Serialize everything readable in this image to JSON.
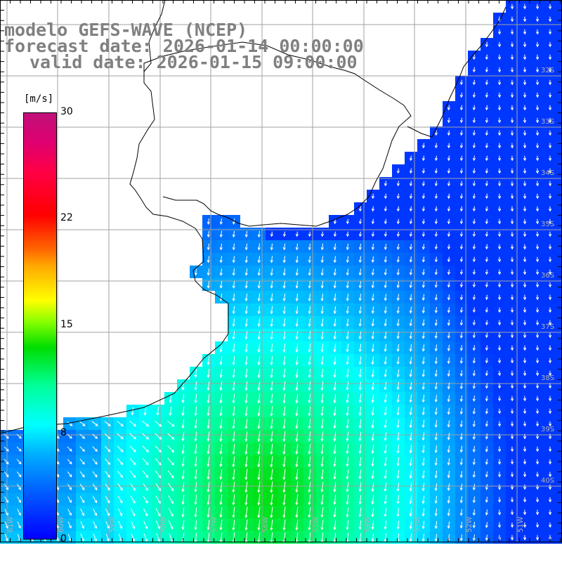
{
  "title": {
    "line1": "modelo GEFS-WAVE (NCEP)",
    "line2": "forecast date: 2026-01-14 00:00:00",
    "line3": "valid date: 2026-01-15 09:00:00"
  },
  "colorbar": {
    "unit": "[m/s]",
    "ticks": [
      "30",
      "22",
      "15",
      "8",
      "0"
    ],
    "tick_values": [
      30,
      22,
      15,
      8,
      0
    ]
  },
  "grid": {
    "lon_labels": [
      "61W",
      "60W",
      "59W",
      "58W",
      "57W",
      "56W",
      "55W",
      "54W",
      "53W",
      "52W",
      "51W"
    ],
    "lat_labels": [
      "32S",
      "33S",
      "34S",
      "35S",
      "36S",
      "37S",
      "38S",
      "39S",
      "40S"
    ]
  },
  "map_colors": {
    "land": "#ffffff",
    "coast": "#000000",
    "gridline": "#a0a0a0",
    "vector": "#ffffff",
    "speed_0": "#0000ff",
    "speed_8": "#00ffff",
    "speed_15": "#00dd00"
  }
}
